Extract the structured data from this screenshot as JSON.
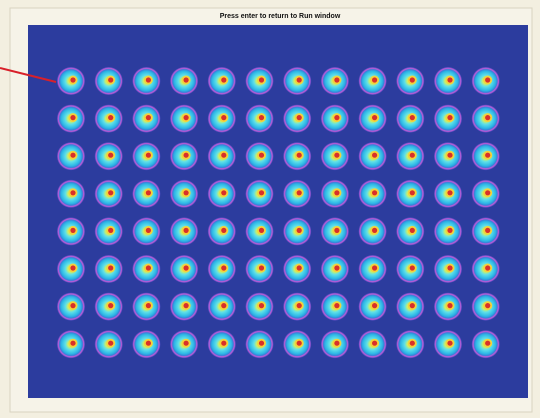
{
  "header": {
    "title": "Press enter to return to Run window"
  }
}
